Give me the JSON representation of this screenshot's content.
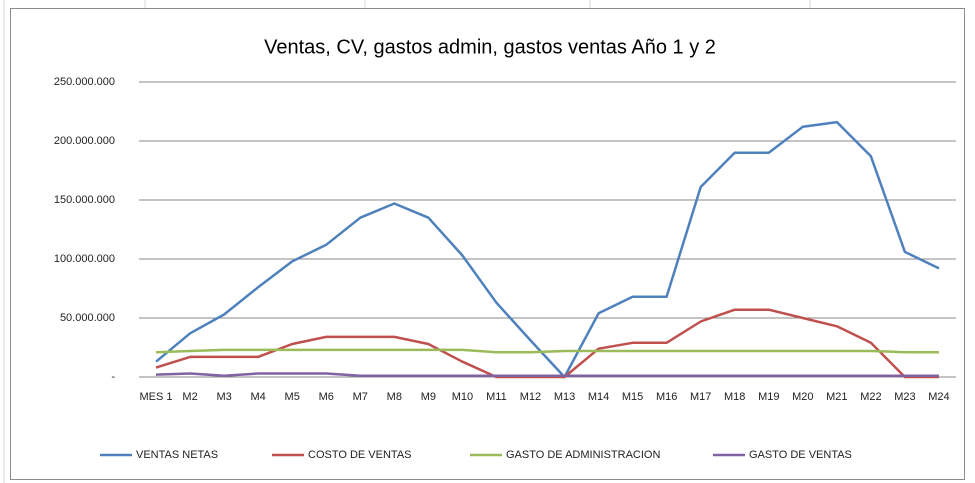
{
  "chart_data": {
    "type": "line",
    "title": "Ventas, CV, gastos admin, gastos ventas Año 1 y 2",
    "categories": [
      "MES 1",
      "M2",
      "M3",
      "M4",
      "M5",
      "M6",
      "M7",
      "M8",
      "M9",
      "M10",
      "M11",
      "M12",
      "M13",
      "M14",
      "M15",
      "M16",
      "M17",
      "M18",
      "M19",
      "M20",
      "M21",
      "M22",
      "M23",
      "M24"
    ],
    "series": [
      {
        "name": "VENTAS NETAS",
        "color": "#4f81bd",
        "values": [
          13000000,
          37000000,
          53000000,
          76000000,
          98000000,
          112000000,
          135000000,
          147000000,
          135000000,
          103000000,
          63000000,
          31000000,
          0,
          54000000,
          68000000,
          68000000,
          161000000,
          190000000,
          190000000,
          212000000,
          216000000,
          187000000,
          106000000,
          92000000
        ]
      },
      {
        "name": "COSTO DE VENTAS",
        "color": "#c0504d",
        "values": [
          8000000,
          17000000,
          17000000,
          17000000,
          28000000,
          34000000,
          34000000,
          34000000,
          28000000,
          13000000,
          0,
          0,
          0,
          24000000,
          29000000,
          29000000,
          47000000,
          57000000,
          57000000,
          50000000,
          43000000,
          29000000,
          0,
          0
        ]
      },
      {
        "name": "GASTO DE ADMINISTRACION",
        "color": "#9bbb59",
        "values": [
          21000000,
          22000000,
          23000000,
          23000000,
          23000000,
          23000000,
          23000000,
          23000000,
          23000000,
          23000000,
          21000000,
          21000000,
          22000000,
          22000000,
          22000000,
          22000000,
          22000000,
          22000000,
          22000000,
          22000000,
          22000000,
          22000000,
          21000000,
          21000000
        ]
      },
      {
        "name": "GASTO DE VENTAS",
        "color": "#8064a2",
        "values": [
          2000000,
          3000000,
          1000000,
          3000000,
          3000000,
          3000000,
          1000000,
          1000000,
          1000000,
          1000000,
          1000000,
          1000000,
          1000000,
          1000000,
          1000000,
          1000000,
          1000000,
          1000000,
          1000000,
          1000000,
          1000000,
          1000000,
          1000000,
          1000000
        ]
      }
    ],
    "ylim": [
      0,
      250000000
    ],
    "yticks": [
      {
        "value": 0,
        "label": "-"
      },
      {
        "value": 50000000,
        "label": "50.000.000"
      },
      {
        "value": 100000000,
        "label": "100.000.000"
      },
      {
        "value": 150000000,
        "label": "150.000.000"
      },
      {
        "value": 200000000,
        "label": "200.000.000"
      },
      {
        "value": 250000000,
        "label": "250.000.000"
      }
    ],
    "grid": true,
    "legend": "bottom"
  }
}
